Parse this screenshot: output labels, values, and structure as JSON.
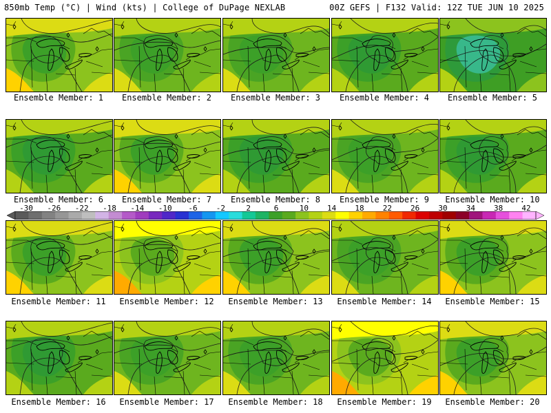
{
  "header": {
    "left": "850mb Temp (°C) | Wind (kts) | College of DuPage NEXLAB",
    "right": "00Z GEFS | F132 Valid: 12Z TUE JUN 10 2025"
  },
  "members": [
    {
      "label": "Ensemble Member: 1",
      "temp_scale": 0.2
    },
    {
      "label": "Ensemble Member: 2",
      "temp_scale": 0.1
    },
    {
      "label": "Ensemble Member: 3",
      "temp_scale": 0.0
    },
    {
      "label": "Ensemble Member: 4",
      "temp_scale": -0.5
    },
    {
      "label": "Ensemble Member: 5",
      "temp_scale": -1.0
    },
    {
      "label": "Ensemble Member: 6",
      "temp_scale": -0.6
    },
    {
      "label": "Ensemble Member: 7",
      "temp_scale": 0.2
    },
    {
      "label": "Ensemble Member: 8",
      "temp_scale": -0.4
    },
    {
      "label": "Ensemble Member: 9",
      "temp_scale": -0.3
    },
    {
      "label": "Ensemble Member: 10",
      "temp_scale": -0.4
    },
    {
      "label": "Ensemble Member: 11",
      "temp_scale": 0.4
    },
    {
      "label": "Ensemble Member: 12",
      "temp_scale": 0.5
    },
    {
      "label": "Ensemble Member: 13",
      "temp_scale": 0.2
    },
    {
      "label": "Ensemble Member: 14",
      "temp_scale": 0.0
    },
    {
      "label": "Ensemble Member: 15",
      "temp_scale": 0.2
    },
    {
      "label": "Ensemble Member: 16",
      "temp_scale": -0.5
    },
    {
      "label": "Ensemble Member: 17",
      "temp_scale": 0.0
    },
    {
      "label": "Ensemble Member: 18",
      "temp_scale": -0.3
    },
    {
      "label": "Ensemble Member: 19",
      "temp_scale": 0.8
    },
    {
      "label": "Ensemble Member: 20",
      "temp_scale": 0.3
    }
  ],
  "colorbar": {
    "ticks": [
      "-30",
      "-26",
      "-22",
      "-18",
      "-14",
      "-10",
      "-6",
      "-2",
      "2",
      "6",
      "10",
      "14",
      "18",
      "22",
      "26",
      "30",
      "34",
      "38",
      "42"
    ],
    "colors": [
      "#5a5a5a",
      "#6e6e6e",
      "#828282",
      "#969696",
      "#aaaaaa",
      "#bebebe",
      "#d2b4e6",
      "#c38cd2",
      "#b45ac8",
      "#a03cbe",
      "#7828be",
      "#5028c8",
      "#2832d2",
      "#1e64e6",
      "#1496f0",
      "#14c8ff",
      "#28dcdc",
      "#14c896",
      "#1eb464",
      "#3ca028",
      "#5aaa1e",
      "#8cc31e",
      "#b4d214",
      "#dcdc14",
      "#ffff00",
      "#ffd200",
      "#ffaa00",
      "#ff8200",
      "#ff5a00",
      "#f02800",
      "#dc0000",
      "#be0000",
      "#a00000",
      "#8c0028",
      "#a0147c",
      "#c828b4",
      "#e650dc",
      "#ff82f0",
      "#ffb4ff"
    ]
  }
}
